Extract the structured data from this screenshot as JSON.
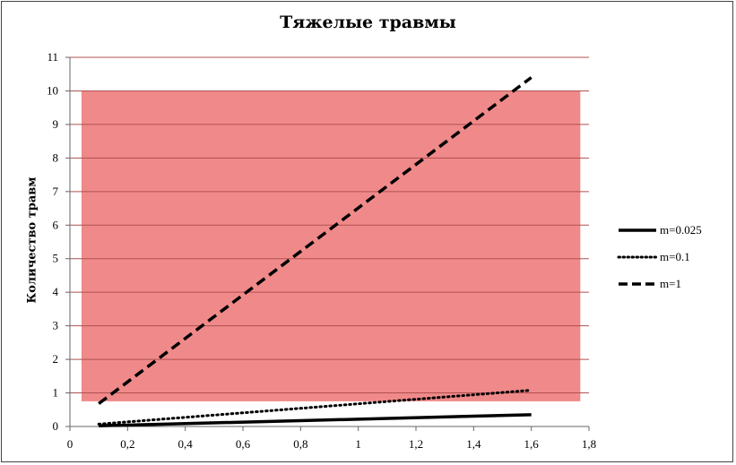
{
  "chart_data": {
    "type": "line",
    "title": "Тяжелые травмы",
    "xlabel": "",
    "ylabel": "Количество травм",
    "xlim": [
      0,
      1.8
    ],
    "ylim": [
      0,
      11
    ],
    "x_ticks": [
      "0",
      "0,2",
      "0,4",
      "0,6",
      "0,8",
      "1",
      "1,2",
      "1,4",
      "1,6",
      "1,8"
    ],
    "y_ticks": [
      "0",
      "1",
      "2",
      "3",
      "4",
      "5",
      "6",
      "7",
      "8",
      "9",
      "10",
      "11"
    ],
    "grid": "horizontal",
    "legend_position": "right",
    "shaded_band": {
      "y_range": [
        0.75,
        10
      ],
      "x_range": [
        0.04,
        1.77
      ],
      "color": "#f08a8a"
    },
    "series": [
      {
        "name": "m=0.025",
        "style": "solid",
        "x": [
          0.1,
          1.6
        ],
        "y": [
          0.02,
          0.35
        ]
      },
      {
        "name": "m=0.1",
        "style": "dotted",
        "x": [
          0.1,
          1.6
        ],
        "y": [
          0.07,
          1.08
        ]
      },
      {
        "name": "m=1",
        "style": "dashed",
        "x": [
          0.1,
          1.6
        ],
        "y": [
          0.68,
          10.4
        ]
      }
    ]
  }
}
